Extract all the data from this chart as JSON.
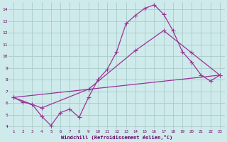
{
  "background_color": "#ceeaea",
  "grid_color": "#aacccc",
  "line_color": "#993399",
  "markersize": 2.5,
  "linewidth": 0.9,
  "xlim": [
    0.5,
    23.5
  ],
  "ylim": [
    3.8,
    14.6
  ],
  "yticks": [
    4,
    5,
    6,
    7,
    8,
    9,
    10,
    11,
    12,
    13,
    14
  ],
  "xticks": [
    1,
    2,
    3,
    4,
    5,
    6,
    7,
    8,
    9,
    10,
    11,
    12,
    13,
    14,
    15,
    16,
    17,
    18,
    19,
    20,
    21,
    22,
    23
  ],
  "xlabel": "Windchill (Refroidissement éolien,°C)",
  "line1_x": [
    1,
    2,
    3,
    4,
    5,
    6,
    7,
    8,
    9,
    10,
    11,
    12,
    13,
    14,
    15,
    16,
    17,
    18,
    19,
    20,
    21,
    22,
    23
  ],
  "line1_y": [
    6.5,
    6.1,
    5.9,
    4.9,
    4.1,
    5.2,
    5.5,
    4.8,
    6.5,
    8.0,
    8.9,
    10.4,
    12.8,
    13.5,
    14.1,
    14.4,
    13.6,
    12.2,
    10.4,
    9.5,
    8.4,
    7.9,
    8.4
  ],
  "line2_x": [
    1,
    4,
    9,
    14,
    17,
    20,
    23
  ],
  "line2_y": [
    6.5,
    5.6,
    7.2,
    10.5,
    12.2,
    10.3,
    8.4
  ],
  "line3_x": [
    1,
    23
  ],
  "line3_y": [
    6.5,
    8.4
  ]
}
